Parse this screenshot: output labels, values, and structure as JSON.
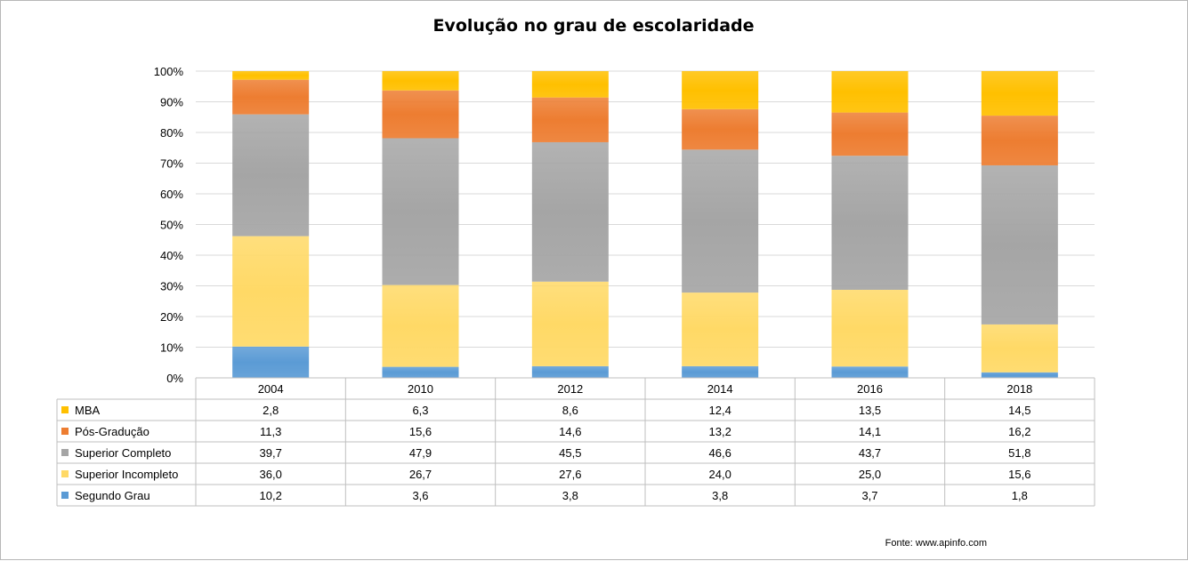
{
  "chart_data": {
    "type": "bar",
    "stacked": true,
    "normalized": true,
    "title": "Evolução no grau de escolaridade",
    "categories": [
      "2004",
      "2010",
      "2012",
      "2014",
      "2016",
      "2018"
    ],
    "series": [
      {
        "name": "Segundo Grau",
        "color": "#5b9bd5",
        "values": [
          10.2,
          3.6,
          3.8,
          3.8,
          3.7,
          1.8
        ],
        "labels": [
          "10,2",
          "3,6",
          "3,8",
          "3,8",
          "3,7",
          "1,8"
        ]
      },
      {
        "name": "Superior Incompleto",
        "color": "#ffd966",
        "values": [
          36.0,
          26.7,
          27.6,
          24.0,
          25.0,
          15.6
        ],
        "labels": [
          "36,0",
          "26,7",
          "27,6",
          "24,0",
          "25,0",
          "15,6"
        ]
      },
      {
        "name": "Superior Completo",
        "color": "#a5a5a5",
        "values": [
          39.7,
          47.9,
          45.5,
          46.6,
          43.7,
          51.8
        ],
        "labels": [
          "39,7",
          "47,9",
          "45,5",
          "46,6",
          "43,7",
          "51,8"
        ]
      },
      {
        "name": "Pós-Gradução",
        "color": "#ed7d31",
        "values": [
          11.3,
          15.6,
          14.6,
          13.2,
          14.1,
          16.2
        ],
        "labels": [
          "11,3",
          "15,6",
          "14,6",
          "13,2",
          "14,1",
          "16,2"
        ]
      },
      {
        "name": "MBA",
        "color": "#ffc000",
        "values": [
          2.8,
          6.3,
          8.6,
          12.4,
          13.5,
          14.5
        ],
        "labels": [
          "2,8",
          "6,3",
          "8,6",
          "12,4",
          "13,5",
          "14,5"
        ]
      }
    ],
    "yticks": [
      "0%",
      "10%",
      "20%",
      "30%",
      "40%",
      "50%",
      "60%",
      "70%",
      "80%",
      "90%",
      "100%"
    ],
    "ylim": [
      0,
      100
    ],
    "grid": true,
    "legend": "data-table"
  },
  "source": "Fonte:  www.apinfo.com"
}
